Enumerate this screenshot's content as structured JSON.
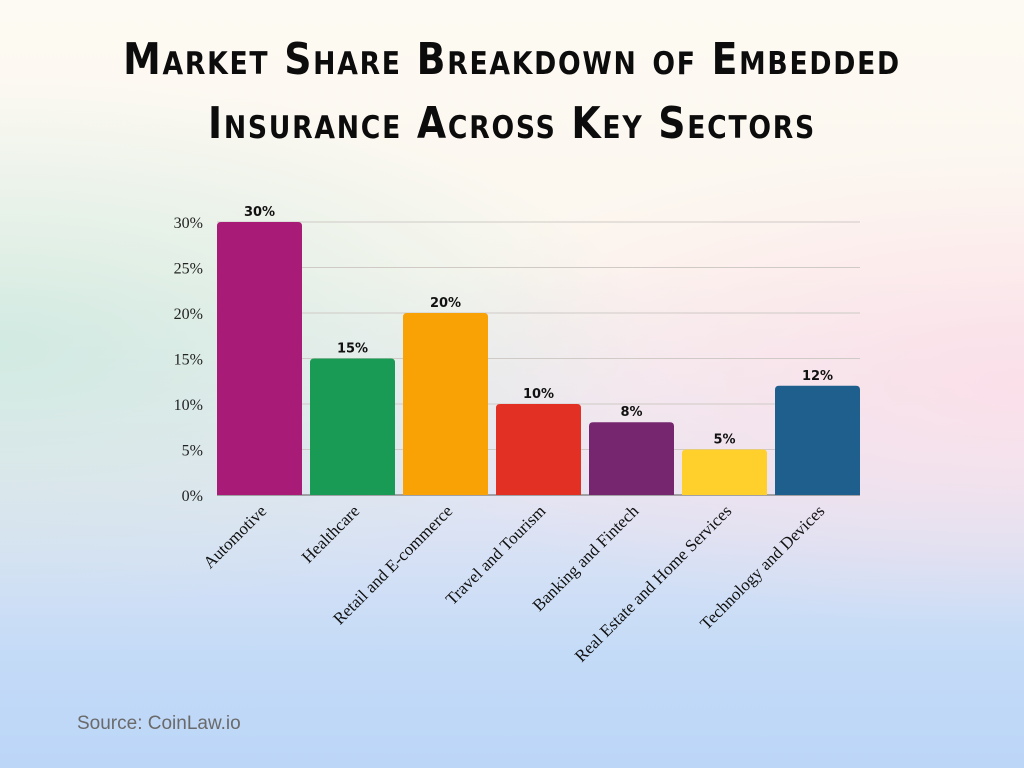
{
  "title_lines": [
    "Market Share Breakdown of Embedded",
    "Insurance Across Key Sectors"
  ],
  "source": "Source: CoinLaw.io",
  "chart_data": {
    "type": "bar",
    "title": "Market Share Breakdown of Embedded Insurance Across Key Sectors",
    "categories": [
      "Automotive",
      "Healthcare",
      "Retail and E-commerce",
      "Travel and Tourism",
      "Banking and Fintech",
      "Real Estate and Home Services",
      "Technology and Devices"
    ],
    "values": [
      30,
      15,
      20,
      10,
      8,
      5,
      12
    ],
    "data_labels": [
      "30%",
      "15%",
      "20%",
      "10%",
      "8%",
      "5%",
      "12%"
    ],
    "colors": [
      "#a81c78",
      "#1a9b55",
      "#f8a205",
      "#e33024",
      "#75266e",
      "#ffcf2c",
      "#1f5f8d"
    ],
    "ylim": [
      0,
      30
    ],
    "yticks": [
      0,
      5,
      10,
      15,
      20,
      25,
      30
    ],
    "ytick_labels": [
      "0%",
      "5%",
      "10%",
      "15%",
      "20%",
      "25%",
      "30%"
    ],
    "grid": true,
    "legend": "none",
    "xlabel": "",
    "ylabel": ""
  }
}
